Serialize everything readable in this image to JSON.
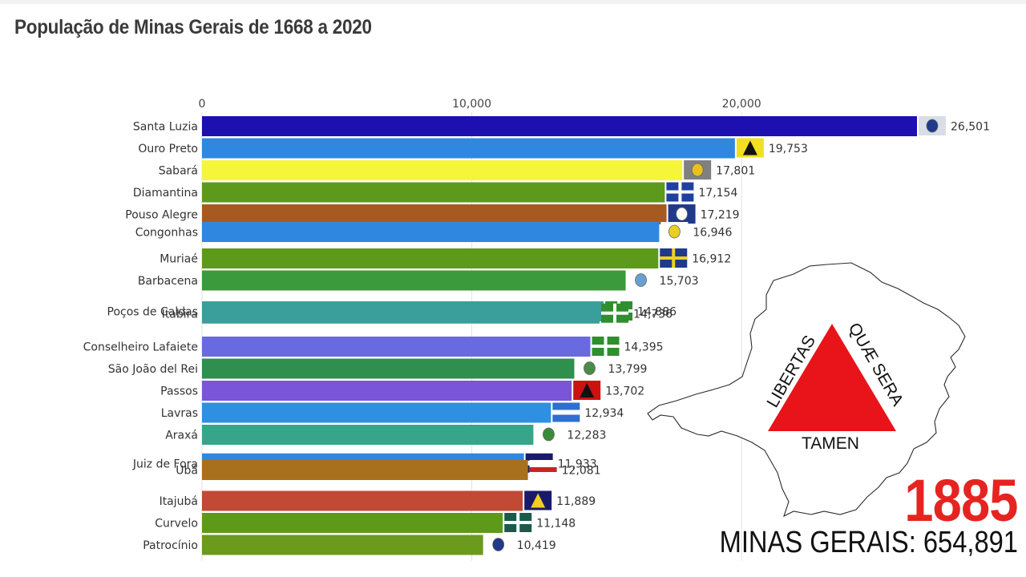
{
  "chart_data": {
    "type": "bar",
    "orientation": "horizontal",
    "title": "População de Minas Gerais de 1668 a 2020",
    "xlim": [
      0,
      26501
    ],
    "x_ticks": [
      0,
      10000,
      20000
    ],
    "x_tick_labels": [
      "0",
      "10,000",
      "20,000"
    ],
    "grid": true,
    "bars": [
      {
        "name": "Santa Luzia",
        "value": 26501,
        "label": "26,501",
        "color": "#1e0fb0",
        "rank": 0
      },
      {
        "name": "Ouro Preto",
        "value": 19753,
        "label": "19,753",
        "color": "#2f87e0",
        "rank": 1
      },
      {
        "name": "Sabará",
        "value": 17801,
        "label": "17,801",
        "color": "#f5f53a",
        "rank": 2
      },
      {
        "name": "Diamantina",
        "value": 17154,
        "label": "17,154",
        "color": "#5d9a1c",
        "rank": 3
      },
      {
        "name": "Pouso Alegre",
        "value": 17219,
        "label": "17,219",
        "color": "#a65a22",
        "rank": 4
      },
      {
        "name": "Congonhas",
        "value": 16946,
        "label": "16,946",
        "color": "#2f87e0",
        "rank": 4.8
      },
      {
        "name": "Muriaé",
        "value": 16912,
        "label": "16,912",
        "color": "#5d9a1c",
        "rank": 6
      },
      {
        "name": "Barbacena",
        "value": 15703,
        "label": "15,703",
        "color": "#3b9a3b",
        "rank": 7
      },
      {
        "name": "Poços de Caldas",
        "value": 14886,
        "label": "14,886",
        "color": "#3a9e9a",
        "rank": 8.4
      },
      {
        "name": "Itabira",
        "value": 14736,
        "label": "14,736",
        "color": "#3a9e9a",
        "rank": 8.5
      },
      {
        "name": "Conselheiro Lafaiete",
        "value": 14395,
        "label": "14,395",
        "color": "#6a6ae0",
        "rank": 10
      },
      {
        "name": "São João del Rei",
        "value": 13799,
        "label": "13,799",
        "color": "#2f8f4f",
        "rank": 11
      },
      {
        "name": "Passos",
        "value": 13702,
        "label": "13,702",
        "color": "#7a55d8",
        "rank": 12
      },
      {
        "name": "Lavras",
        "value": 12934,
        "label": "12,934",
        "color": "#2f8fe0",
        "rank": 13
      },
      {
        "name": "Araxá",
        "value": 12283,
        "label": "12,283",
        "color": "#37a58a",
        "rank": 14
      },
      {
        "name": "Juiz de Fora",
        "value": 11933,
        "label": "11,933",
        "color": "#2f87e0",
        "rank": 15.3
      },
      {
        "name": "Ubá",
        "value": 12081,
        "label": "12,081",
        "color": "#a8701c",
        "rank": 15.6
      },
      {
        "name": "Itajubá",
        "value": 11889,
        "label": "11,889",
        "color": "#c04a33",
        "rank": 17
      },
      {
        "name": "Curvelo",
        "value": 11148,
        "label": "11,148",
        "color": "#5d9a1c",
        "rank": 18
      },
      {
        "name": "Patrocínio",
        "value": 10419,
        "label": "10,419",
        "color": "#6b9a1c",
        "rank": 19
      }
    ]
  },
  "flags": [
    {
      "bg": "#d8dde8",
      "fg": "#203a8a",
      "symbol": "coat"
    },
    {
      "bg": "#f0e020",
      "fg": "#111111",
      "symbol": "triangle"
    },
    {
      "bg": "#808080",
      "fg": "#e8c020",
      "symbol": "coat"
    },
    {
      "bg": "#2040a0",
      "fg": "#ffffff",
      "symbol": "cross"
    },
    {
      "bg": "#203a8a",
      "fg": "#ffffff",
      "symbol": "coat"
    },
    {
      "bg": "#ffffff",
      "fg": "#e8d020",
      "symbol": "coat"
    },
    {
      "bg": "#203a8a",
      "fg": "#f0d020",
      "symbol": "cross"
    },
    {
      "bg": "#ffffff",
      "fg": "#6aa0d0",
      "symbol": "coat"
    },
    {
      "bg": "#2f8f2f",
      "fg": "#ffffff",
      "symbol": "cross"
    },
    {
      "bg": "#2f8f2f",
      "fg": "#ffffff",
      "symbol": "cross"
    },
    {
      "bg": "#2f8f2f",
      "fg": "#ffffff",
      "symbol": "cross"
    },
    {
      "bg": "#ffffff",
      "fg": "#4a8a4a",
      "symbol": "coat"
    },
    {
      "bg": "#cc1111",
      "fg": "#111111",
      "symbol": "triangle"
    },
    {
      "bg": "#2f6fd0",
      "fg": "#ffffff",
      "symbol": "stripe"
    },
    {
      "bg": "#ffffff",
      "fg": "#3a8a3a",
      "symbol": "coat"
    },
    {
      "bg": "#1a1a6a",
      "fg": "#ffffff",
      "symbol": "stripe"
    },
    {
      "bg": "#ffffff",
      "fg": "#cc2222",
      "symbol": "stripe"
    },
    {
      "bg": "#1a1a6a",
      "fg": "#f0d020",
      "symbol": "triangle"
    },
    {
      "bg": "#1a5a4a",
      "fg": "#ffffff",
      "symbol": "cross"
    },
    {
      "bg": "#ffffff",
      "fg": "#203a8a",
      "symbol": "coat"
    }
  ],
  "map": {
    "motto_left": "LIBERTAS",
    "motto_right": "QUÆ SERA",
    "motto_bottom": "TAMEN",
    "triangle_color": "#e8141a"
  },
  "year": "1885",
  "total": {
    "label": "MINAS GERAIS:",
    "value": "654,891"
  }
}
